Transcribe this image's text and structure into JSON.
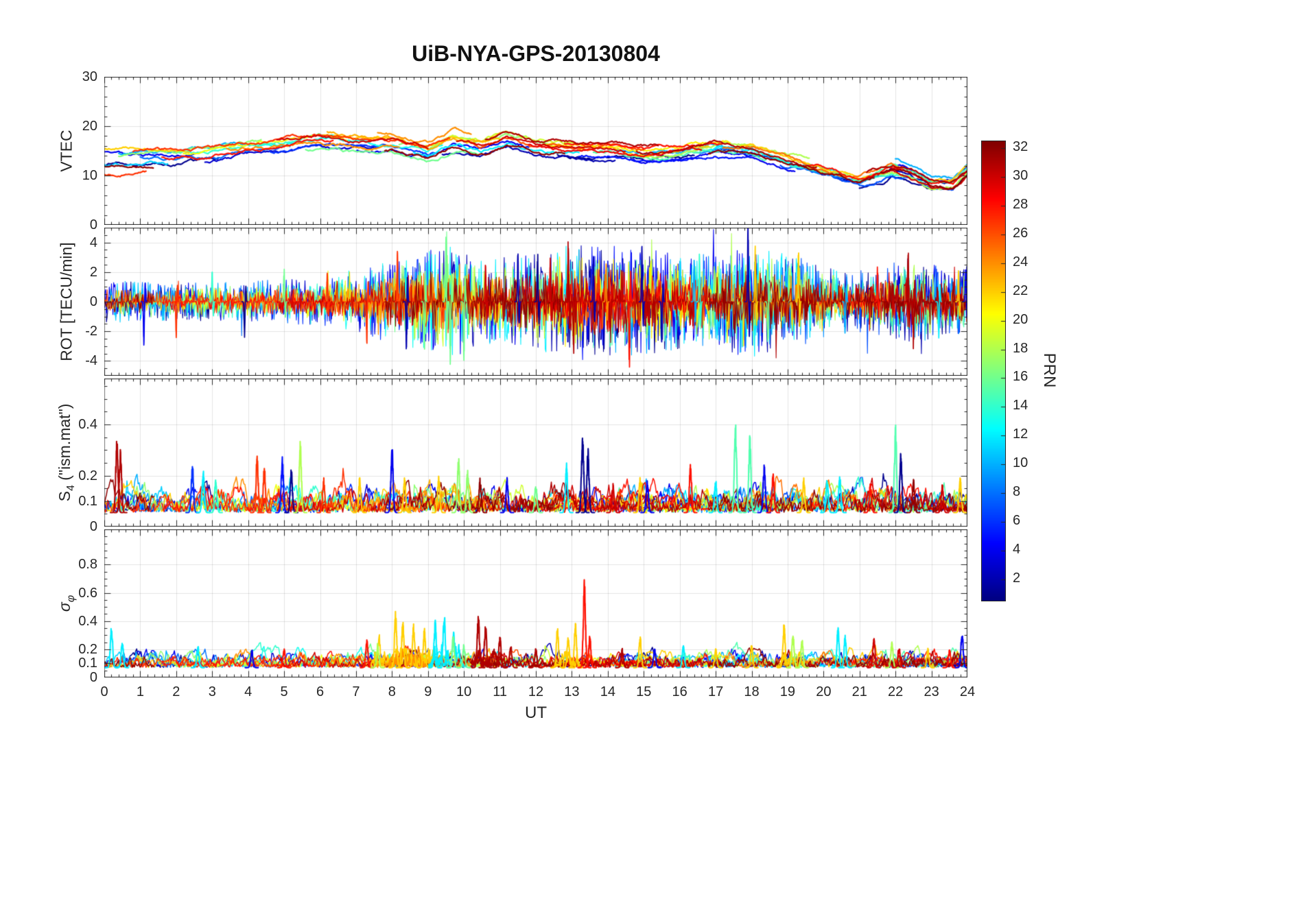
{
  "title": "UiB-NYA-GPS-20130804",
  "xlabel": "UT",
  "colorbar": {
    "label": "PRN",
    "ticks": [
      2,
      4,
      6,
      8,
      10,
      12,
      14,
      16,
      18,
      20,
      22,
      24,
      26,
      28,
      30,
      32
    ],
    "vmin": 0.5,
    "vmax": 32.5,
    "colormap": "jet"
  },
  "chart_data": {
    "type": "line",
    "title": "UiB-NYA-GPS-20130804",
    "xlabel": "UT",
    "x_range": [
      0,
      24
    ],
    "x_ticks": [
      0,
      1,
      2,
      3,
      4,
      5,
      6,
      7,
      8,
      9,
      10,
      11,
      12,
      13,
      14,
      15,
      16,
      17,
      18,
      19,
      20,
      21,
      22,
      23,
      24
    ],
    "x_minor": 0.2,
    "grid": true,
    "series_colored_by": "PRN (jet colormap, 1-32)",
    "arcs": [
      [
        1,
        0,
        3.2,
        -1.5
      ],
      [
        1,
        12.6,
        16.4,
        -0.8
      ],
      [
        1,
        21.0,
        24,
        -1.2
      ],
      [
        2,
        9.4,
        14.2,
        -1.6
      ],
      [
        2,
        17.0,
        21.2,
        -0.5
      ],
      [
        2,
        20.4,
        24,
        -0.7
      ],
      [
        3,
        2.8,
        7.6,
        -1.0
      ],
      [
        4,
        0,
        2.6,
        0.5
      ],
      [
        4,
        7.0,
        11.8,
        -0.4
      ],
      [
        4,
        14.6,
        19.2,
        -1.3
      ],
      [
        4,
        22.0,
        24,
        1.2
      ],
      [
        5,
        13.2,
        18.2,
        -1.1
      ],
      [
        6,
        4.6,
        9.2,
        -0.5
      ],
      [
        7,
        18.8,
        23.6,
        -1.4
      ],
      [
        8,
        1.0,
        5.2,
        -0.6
      ],
      [
        9,
        16.4,
        21.4,
        -0.9
      ],
      [
        10,
        0.4,
        4.2,
        0.3
      ],
      [
        10,
        14.2,
        18.6,
        0.2
      ],
      [
        10,
        22.0,
        24,
        1.4
      ],
      [
        11,
        0,
        1.8,
        -2.0
      ],
      [
        12,
        8.6,
        13.2,
        -0.5
      ],
      [
        12,
        15.8,
        20.6,
        0.4
      ],
      [
        13,
        4.2,
        9.4,
        0.6
      ],
      [
        14,
        2.0,
        6.6,
        0.9
      ],
      [
        14,
        18.0,
        23.0,
        -0.3
      ],
      [
        15,
        13.6,
        18.4,
        -0.2
      ],
      [
        15,
        20.8,
        24,
        0.6
      ],
      [
        16,
        5.6,
        10.4,
        -1.2
      ],
      [
        17,
        0.4,
        4.4,
        0.8
      ],
      [
        17,
        8.2,
        12.6,
        1.2
      ],
      [
        18,
        14.8,
        19.6,
        1.0
      ],
      [
        18,
        19.5,
        24,
        -0.5
      ],
      [
        19,
        8.6,
        13.4,
        1.2
      ],
      [
        20,
        2.2,
        6.8,
        1.0
      ],
      [
        21,
        12.4,
        17.4,
        1.1
      ],
      [
        22,
        0,
        2.4,
        1.5
      ],
      [
        22,
        6.4,
        11.0,
        0.9
      ],
      [
        22,
        12.2,
        16.8,
        0.7
      ],
      [
        22,
        17.6,
        21.8,
        0.3
      ],
      [
        22,
        23.0,
        24,
        0.5
      ],
      [
        23,
        6.2,
        11.0,
        1.8
      ],
      [
        24,
        3.4,
        8.2,
        0.2
      ],
      [
        24,
        7.6,
        10.2,
        2.2
      ],
      [
        25,
        17.2,
        22.2,
        0.5
      ],
      [
        26,
        10.2,
        15.0,
        0.9
      ],
      [
        27,
        0,
        1.2,
        -2.5
      ],
      [
        27,
        0.8,
        5.8,
        0.9
      ],
      [
        27,
        5.8,
        9.6,
        1.5
      ],
      [
        28,
        1.6,
        6.4,
        0.4
      ],
      [
        28,
        12.8,
        17.2,
        1.3
      ],
      [
        28,
        19.6,
        24,
        0.6
      ],
      [
        29,
        11.8,
        16.6,
        0.3
      ],
      [
        30,
        4.8,
        9.0,
        1.4
      ],
      [
        30,
        9.8,
        14.5,
        0.5
      ],
      [
        30,
        20.9,
        24,
        -0.9
      ],
      [
        31,
        10.6,
        15.4,
        1.6
      ],
      [
        31,
        14.8,
        19.8,
        0.7
      ],
      [
        31,
        21.2,
        24,
        0.5
      ],
      [
        32,
        0,
        1.4,
        -1.8
      ],
      [
        32,
        7.8,
        12.8,
        -0.8
      ],
      [
        32,
        16.8,
        21.4,
        -0.2
      ],
      [
        32,
        21.6,
        24,
        0.1
      ]
    ],
    "panels": [
      {
        "name": "VTEC",
        "ylabel_parts": {
          "main": "VTEC"
        },
        "ylim": [
          0,
          30
        ],
        "yticks": [
          0,
          10,
          20,
          30
        ],
        "yminor": 2,
        "mode": "walk",
        "linewidth": 2.2,
        "trend": [
          [
            0,
            13.5
          ],
          [
            1,
            14
          ],
          [
            2,
            14
          ],
          [
            3,
            14.5
          ],
          [
            4,
            15.5
          ],
          [
            5,
            16
          ],
          [
            6,
            17
          ],
          [
            7,
            16
          ],
          [
            8,
            16
          ],
          [
            9,
            14.5
          ],
          [
            9.7,
            16.5
          ],
          [
            10.5,
            15.5
          ],
          [
            11.2,
            17
          ],
          [
            12,
            15.5
          ],
          [
            13,
            15
          ],
          [
            14,
            15
          ],
          [
            15,
            14
          ],
          [
            16,
            14.5
          ],
          [
            17,
            15.5
          ],
          [
            18,
            15
          ],
          [
            19,
            13
          ],
          [
            20,
            11
          ],
          [
            21,
            9
          ],
          [
            21.9,
            11.5
          ],
          [
            22.4,
            10.5
          ],
          [
            23,
            8.5
          ],
          [
            23.6,
            8.5
          ],
          [
            24,
            11
          ]
        ]
      },
      {
        "name": "ROT",
        "ylabel_parts": {
          "main": "ROT [TECU/min]"
        },
        "ylim": [
          -5,
          5
        ],
        "yticks": [
          -4,
          -2,
          0,
          2,
          4
        ],
        "yminor": 0.5,
        "mode": "noise",
        "linewidth": 1.1,
        "envelope": [
          [
            0,
            0.5
          ],
          [
            2,
            0.45
          ],
          [
            4,
            0.5
          ],
          [
            6,
            0.55
          ],
          [
            7,
            0.7
          ],
          [
            8,
            1.0
          ],
          [
            9,
            1.2
          ],
          [
            9.6,
            1.4
          ],
          [
            10.5,
            1.0
          ],
          [
            11.5,
            1.1
          ],
          [
            12.5,
            1.3
          ],
          [
            13.5,
            1.4
          ],
          [
            14.5,
            1.3
          ],
          [
            15.5,
            1.2
          ],
          [
            16.5,
            1.1
          ],
          [
            17.5,
            1.3
          ],
          [
            18.5,
            1.3
          ],
          [
            19.5,
            1.0
          ],
          [
            20.5,
            0.7
          ],
          [
            21.5,
            0.8
          ],
          [
            22.5,
            1.1
          ],
          [
            23.5,
            0.8
          ],
          [
            24,
            0.9
          ]
        ],
        "events": [
          [
            1.1,
            4,
            -2.6
          ],
          [
            2.0,
            27,
            -2.3
          ],
          [
            3.0,
            14,
            2.0
          ],
          [
            3.9,
            1,
            -2.2
          ],
          [
            5.0,
            16,
            2.2
          ],
          [
            6.2,
            27,
            2.0
          ],
          [
            7.3,
            27,
            -2.8
          ],
          [
            8.15,
            27,
            3.1
          ],
          [
            8.4,
            2,
            -3.4
          ],
          [
            8.9,
            16,
            -3.0
          ],
          [
            9.5,
            16,
            3.9
          ],
          [
            9.62,
            16,
            -3.9
          ],
          [
            10.0,
            16,
            -3.6
          ],
          [
            10.6,
            30,
            2.5
          ],
          [
            11.5,
            2,
            3.0
          ],
          [
            12.05,
            1,
            3.1
          ],
          [
            12.4,
            30,
            2.6
          ],
          [
            12.9,
            31,
            3.8
          ],
          [
            13.05,
            31,
            -3.2
          ],
          [
            13.6,
            2,
            2.8
          ],
          [
            13.95,
            24,
            2.6
          ],
          [
            14.6,
            28,
            -4.3
          ],
          [
            14.95,
            2,
            3.4
          ],
          [
            15.5,
            2,
            -2.5
          ],
          [
            16.4,
            10,
            2.8
          ],
          [
            16.55,
            14,
            3.3
          ],
          [
            17.9,
            2,
            4.9
          ],
          [
            18.1,
            22,
            3.3
          ],
          [
            18.45,
            16,
            -2.7
          ],
          [
            19.3,
            22,
            3.5
          ],
          [
            20.6,
            10,
            -2.2
          ],
          [
            21.5,
            28,
            2.2
          ],
          [
            22.35,
            31,
            3.6
          ],
          [
            22.5,
            31,
            -3.0
          ],
          [
            23.2,
            12,
            -2.4
          ],
          [
            23.75,
            22,
            2.0
          ],
          [
            23.95,
            4,
            2.3
          ]
        ]
      },
      {
        "name": "S4",
        "ylabel_parts": {
          "main": "S",
          "sub": "4",
          "rest": " (\"ism.mat\")"
        },
        "ylim": [
          0,
          0.58
        ],
        "yticks": [
          0,
          0.1,
          0.2,
          0.4
        ],
        "yminor": 0.05,
        "mode": "floor",
        "base": 0.055,
        "noise": 0.02,
        "linewidth": 1.5,
        "events": [
          [
            0.35,
            31,
            0.26
          ],
          [
            0.45,
            31,
            0.22
          ],
          [
            2.45,
            6,
            0.17
          ],
          [
            2.75,
            12,
            0.15
          ],
          [
            3.1,
            14,
            0.12
          ],
          [
            4.25,
            27,
            0.2
          ],
          [
            4.45,
            27,
            0.16
          ],
          [
            4.95,
            5,
            0.19
          ],
          [
            5.2,
            1,
            0.15
          ],
          [
            5.45,
            18,
            0.245
          ],
          [
            6.1,
            27,
            0.12
          ],
          [
            7.1,
            22,
            0.12
          ],
          [
            8.0,
            4,
            0.23
          ],
          [
            8.35,
            22,
            0.12
          ],
          [
            9.3,
            22,
            0.13
          ],
          [
            9.85,
            17,
            0.19
          ],
          [
            10.1,
            17,
            0.15
          ],
          [
            10.45,
            32,
            0.12
          ],
          [
            11.2,
            4,
            0.12
          ],
          [
            12.0,
            16,
            0.1
          ],
          [
            12.85,
            12,
            0.17
          ],
          [
            13.3,
            1,
            0.28
          ],
          [
            13.45,
            1,
            0.22
          ],
          [
            14.15,
            30,
            0.1
          ],
          [
            14.9,
            22,
            0.13
          ],
          [
            15.1,
            4,
            0.11
          ],
          [
            16.3,
            28,
            0.17
          ],
          [
            17.0,
            12,
            0.12
          ],
          [
            17.55,
            15,
            0.33
          ],
          [
            17.95,
            15,
            0.27
          ],
          [
            18.35,
            4,
            0.17
          ],
          [
            18.6,
            28,
            0.14
          ],
          [
            19.45,
            22,
            0.12
          ],
          [
            20.1,
            12,
            0.12
          ],
          [
            20.45,
            12,
            0.13
          ],
          [
            21.3,
            28,
            0.1
          ],
          [
            22.0,
            15,
            0.31
          ],
          [
            22.15,
            1,
            0.21
          ],
          [
            22.5,
            32,
            0.12
          ],
          [
            23.3,
            30,
            0.1
          ],
          [
            23.8,
            22,
            0.12
          ]
        ]
      },
      {
        "name": "sigma-phi",
        "ylabel_parts": {
          "main": "σ",
          "sub": "φ"
        },
        "ylim": [
          0,
          1.05
        ],
        "yticks": [
          0,
          0.1,
          0.2,
          0.4,
          0.6,
          0.8
        ],
        "yminor": 0.05,
        "mode": "floor",
        "base": 0.07,
        "noise": 0.022,
        "linewidth": 1.5,
        "bands": [
          [
            7.4,
            9.3,
            22,
            0.2
          ],
          [
            7.8,
            9.0,
            24,
            0.16
          ],
          [
            9.0,
            10.0,
            12,
            0.22
          ],
          [
            10.2,
            11.2,
            31,
            0.15
          ],
          [
            12.5,
            13.3,
            22,
            0.14
          ],
          [
            18.7,
            19.5,
            22,
            0.13
          ]
        ],
        "events": [
          [
            0.2,
            12,
            0.27
          ],
          [
            0.5,
            12,
            0.18
          ],
          [
            2.6,
            12,
            0.14
          ],
          [
            4.1,
            4,
            0.12
          ],
          [
            5.0,
            28,
            0.12
          ],
          [
            7.3,
            28,
            0.18
          ],
          [
            7.6,
            18,
            0.15
          ],
          [
            8.1,
            22,
            0.36
          ],
          [
            8.3,
            22,
            0.3
          ],
          [
            8.6,
            22,
            0.28
          ],
          [
            8.9,
            22,
            0.25
          ],
          [
            9.2,
            12,
            0.3
          ],
          [
            9.45,
            12,
            0.35
          ],
          [
            9.7,
            16,
            0.2
          ],
          [
            10.0,
            16,
            0.15
          ],
          [
            10.4,
            31,
            0.34
          ],
          [
            10.6,
            31,
            0.28
          ],
          [
            11.0,
            31,
            0.2
          ],
          [
            11.3,
            31,
            0.15
          ],
          [
            12.0,
            31,
            0.12
          ],
          [
            12.6,
            22,
            0.25
          ],
          [
            12.9,
            22,
            0.22
          ],
          [
            13.1,
            22,
            0.28
          ],
          [
            13.35,
            28,
            0.55
          ],
          [
            13.5,
            28,
            0.2
          ],
          [
            14.4,
            31,
            0.12
          ],
          [
            14.9,
            22,
            0.2
          ],
          [
            15.3,
            4,
            0.12
          ],
          [
            16.1,
            12,
            0.14
          ],
          [
            17.0,
            22,
            0.12
          ],
          [
            18.0,
            22,
            0.14
          ],
          [
            18.9,
            22,
            0.28
          ],
          [
            19.15,
            18,
            0.22
          ],
          [
            19.4,
            18,
            0.18
          ],
          [
            20.4,
            12,
            0.26
          ],
          [
            20.6,
            12,
            0.2
          ],
          [
            21.4,
            30,
            0.2
          ],
          [
            21.9,
            18,
            0.16
          ],
          [
            22.1,
            30,
            0.14
          ],
          [
            22.9,
            22,
            0.12
          ],
          [
            23.5,
            28,
            0.12
          ],
          [
            23.85,
            4,
            0.24
          ]
        ]
      }
    ]
  }
}
